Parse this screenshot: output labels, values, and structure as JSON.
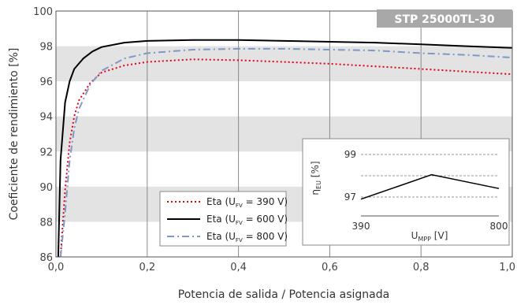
{
  "chart_data": [
    {
      "type": "line",
      "badge": "STP 25000TL-30",
      "ylabel": "Coeficiente de rendimiento [%]",
      "xlabel": "Potencia de salida / Potencia asignada",
      "xlim": [
        0,
        1
      ],
      "ylim": [
        86,
        100
      ],
      "x_ticks": [
        "0,0",
        "0,2",
        "0,4",
        "0,6",
        "0,8",
        "1,0"
      ],
      "y_ticks": [
        "86",
        "88",
        "90",
        "92",
        "94",
        "96",
        "98",
        "100"
      ],
      "grid": "vertical lines at x ticks; alternating grey horizontal bands",
      "legend_position": "bottom-center",
      "series": [
        {
          "name_prefix": "Eta (U",
          "name_sub": "FV",
          "name_suffix": " = 390 V)",
          "color": "#e2001a",
          "dash": "dotted",
          "x": [
            0.01,
            0.02,
            0.03,
            0.04,
            0.05,
            0.075,
            0.1,
            0.15,
            0.2,
            0.3,
            0.4,
            0.5,
            0.6,
            0.7,
            0.8,
            0.9,
            1.0
          ],
          "y": [
            86.0,
            89.8,
            92.5,
            94.0,
            94.9,
            95.9,
            96.5,
            96.9,
            97.1,
            97.25,
            97.2,
            97.1,
            97.0,
            96.85,
            96.7,
            96.55,
            96.4
          ]
        },
        {
          "name_prefix": "Eta (U",
          "name_sub": "FV",
          "name_suffix": " = 600 V)",
          "color": "#000000",
          "dash": "solid",
          "x": [
            0.005,
            0.01,
            0.02,
            0.03,
            0.04,
            0.06,
            0.08,
            0.1,
            0.15,
            0.2,
            0.3,
            0.4,
            0.5,
            0.6,
            0.7,
            0.8,
            0.9,
            1.0
          ],
          "y": [
            86.0,
            91.5,
            94.8,
            96.0,
            96.7,
            97.3,
            97.7,
            97.95,
            98.2,
            98.3,
            98.35,
            98.35,
            98.3,
            98.25,
            98.2,
            98.1,
            98.0,
            97.9
          ]
        },
        {
          "name_prefix": "Eta (U",
          "name_sub": "FV",
          "name_suffix": " = 800 V)",
          "color": "#7f98c6",
          "dash": "dashdot",
          "x": [
            0.01,
            0.02,
            0.03,
            0.04,
            0.05,
            0.075,
            0.1,
            0.15,
            0.2,
            0.3,
            0.4,
            0.5,
            0.6,
            0.7,
            0.8,
            0.9,
            1.0
          ],
          "y": [
            86.0,
            88.5,
            91.5,
            93.3,
            94.4,
            95.8,
            96.6,
            97.3,
            97.6,
            97.8,
            97.85,
            97.85,
            97.8,
            97.75,
            97.6,
            97.5,
            97.35
          ]
        }
      ]
    },
    {
      "type": "line",
      "ylabel_prefix": "η",
      "ylabel_sub": "EU",
      "ylabel_suffix": " [%]",
      "xlabel_prefix": "U",
      "xlabel_sub": "MPP",
      "xlabel_suffix": " [V]",
      "x_ticks": [
        "390",
        "800"
      ],
      "y_ticks": [
        "97",
        "99"
      ],
      "xlim": [
        390,
        800
      ],
      "ylim": [
        97,
        99
      ],
      "series": [
        {
          "color": "#000000",
          "x": [
            390,
            600,
            800
          ],
          "y": [
            96.9,
            98.05,
            97.4
          ]
        }
      ]
    }
  ]
}
